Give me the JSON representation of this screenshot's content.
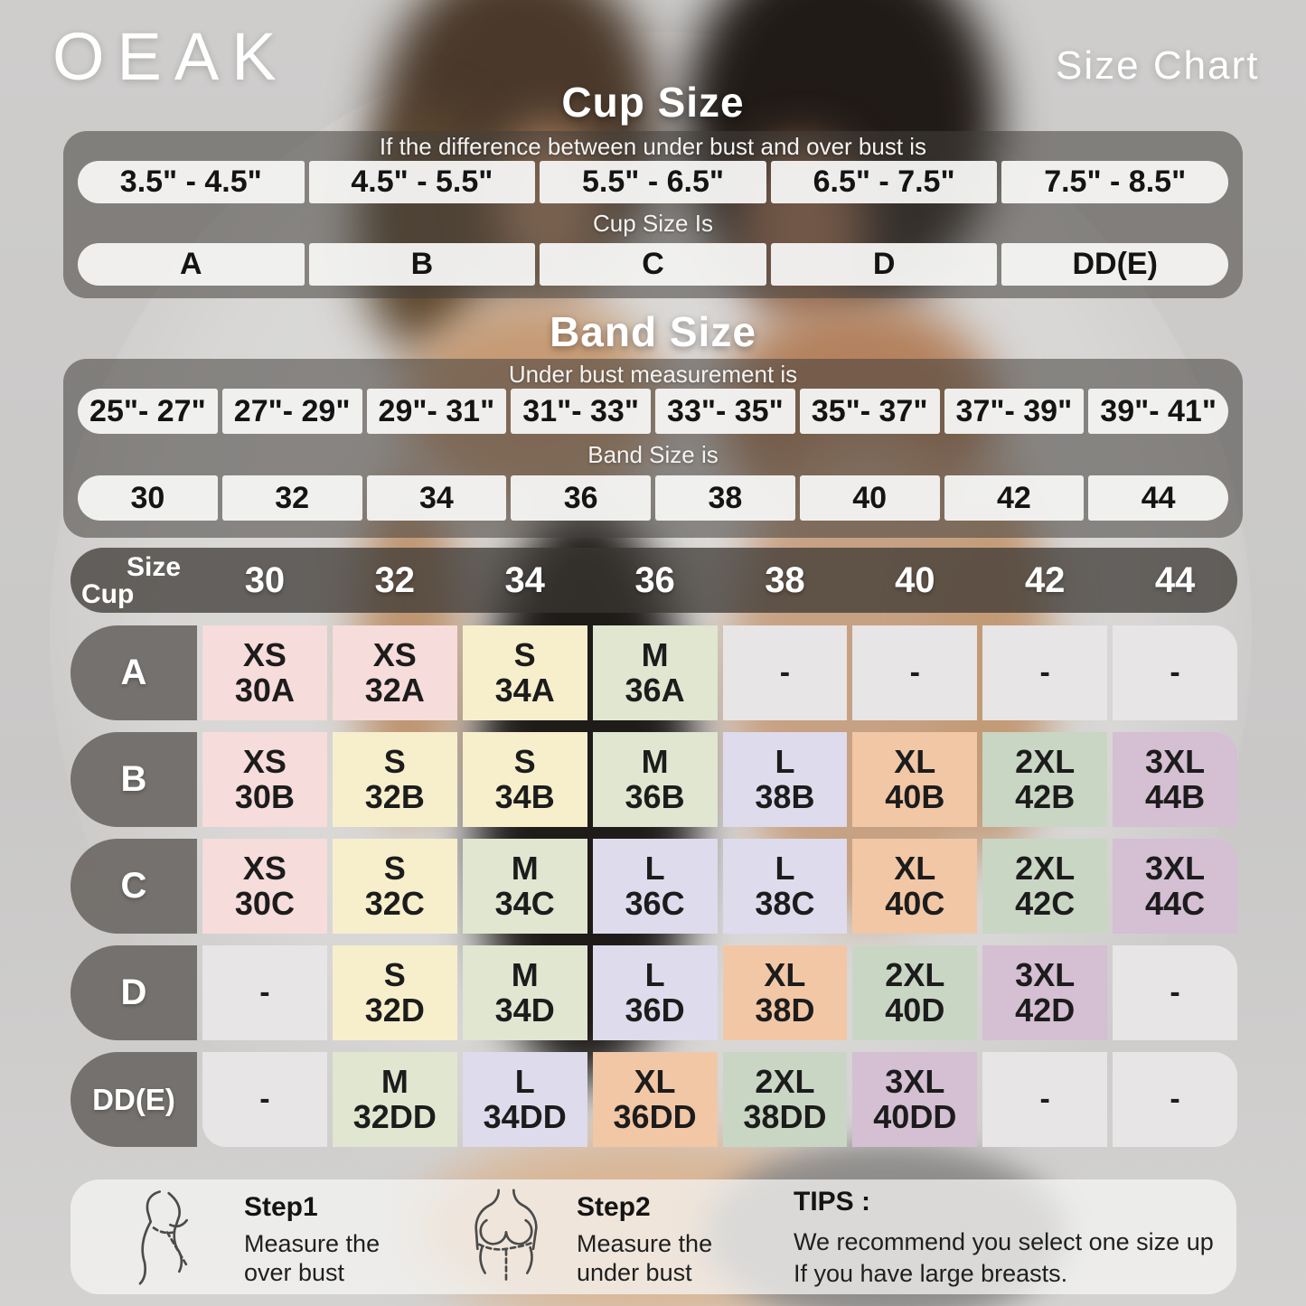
{
  "brand": "OEAK",
  "page_title": "Size Chart",
  "cup_section": {
    "title": "Cup Size",
    "instruction": "If the  difference between under bust and over bust is",
    "ranges": [
      "3.5\" - 4.5\"",
      "4.5\" - 5.5\"",
      "5.5\" - 6.5\"",
      "6.5\" - 7.5\"",
      "7.5\" - 8.5\""
    ],
    "result_label": "Cup Size Is",
    "cups": [
      "A",
      "B",
      "C",
      "D",
      "DD(E)"
    ]
  },
  "band_section": {
    "title": "Band Size",
    "instruction": "Under bust measurement is",
    "ranges": [
      "25\"- 27\"",
      "27\"- 29\"",
      "29\"- 31\"",
      "31\"- 33\"",
      "33\"- 35\"",
      "35\"- 37\"",
      "37\"- 39\"",
      "39\"- 41\""
    ],
    "result_label": "Band Size is",
    "bands": [
      "30",
      "32",
      "34",
      "36",
      "38",
      "40",
      "42",
      "44"
    ]
  },
  "matrix": {
    "corner_top": "Size",
    "corner_bottom": "Cup",
    "columns": [
      "30",
      "32",
      "34",
      "36",
      "38",
      "40",
      "42",
      "44"
    ],
    "rows": [
      {
        "cup": "A",
        "cells": [
          [
            "XS",
            "30A"
          ],
          [
            "XS",
            "32A"
          ],
          [
            "S",
            "34A"
          ],
          [
            "M",
            "36A"
          ],
          [
            "-",
            ""
          ],
          [
            "-",
            ""
          ],
          [
            "-",
            ""
          ],
          [
            "-",
            ""
          ]
        ]
      },
      {
        "cup": "B",
        "cells": [
          [
            "XS",
            "30B"
          ],
          [
            "S",
            "32B"
          ],
          [
            "S",
            "34B"
          ],
          [
            "M",
            "36B"
          ],
          [
            "L",
            "38B"
          ],
          [
            "XL",
            "40B"
          ],
          [
            "2XL",
            "42B"
          ],
          [
            "3XL",
            "44B"
          ]
        ]
      },
      {
        "cup": "C",
        "cells": [
          [
            "XS",
            "30C"
          ],
          [
            "S",
            "32C"
          ],
          [
            "M",
            "34C"
          ],
          [
            "L",
            "36C"
          ],
          [
            "L",
            "38C"
          ],
          [
            "XL",
            "40C"
          ],
          [
            "2XL",
            "42C"
          ],
          [
            "3XL",
            "44C"
          ]
        ]
      },
      {
        "cup": "D",
        "cells": [
          [
            "-",
            ""
          ],
          [
            "S",
            "32D"
          ],
          [
            "M",
            "34D"
          ],
          [
            "L",
            "36D"
          ],
          [
            "XL",
            "38D"
          ],
          [
            "2XL",
            "40D"
          ],
          [
            "3XL",
            "42D"
          ],
          [
            "-",
            ""
          ]
        ]
      },
      {
        "cup": "DD(E)",
        "cells": [
          [
            "-",
            ""
          ],
          [
            "M",
            "32DD"
          ],
          [
            "L",
            "34DD"
          ],
          [
            "XL",
            "36DD"
          ],
          [
            "2XL",
            "38DD"
          ],
          [
            "3XL",
            "40DD"
          ],
          [
            "-",
            ""
          ],
          [
            "-",
            ""
          ]
        ]
      }
    ]
  },
  "colors": {
    "size_fill": {
      "XS": "#f6dcda",
      "S": "#f7efcc",
      "M": "#e0e6d0",
      "L": "#dedbec",
      "XL": "#f2c7a6",
      "2XL": "#c9d6c4",
      "3XL": "#d5bfd3",
      "-": "#e7e5e6"
    }
  },
  "guide": {
    "step1": {
      "title": "Step1",
      "line1": "Measure the",
      "line2": "over bust"
    },
    "step2": {
      "title": "Step2",
      "line1": "Measure the",
      "line2": "under bust"
    },
    "tips": {
      "title": "TIPS :",
      "line1": "We recommend you select one size up",
      "line2": "If you have large breasts."
    }
  }
}
